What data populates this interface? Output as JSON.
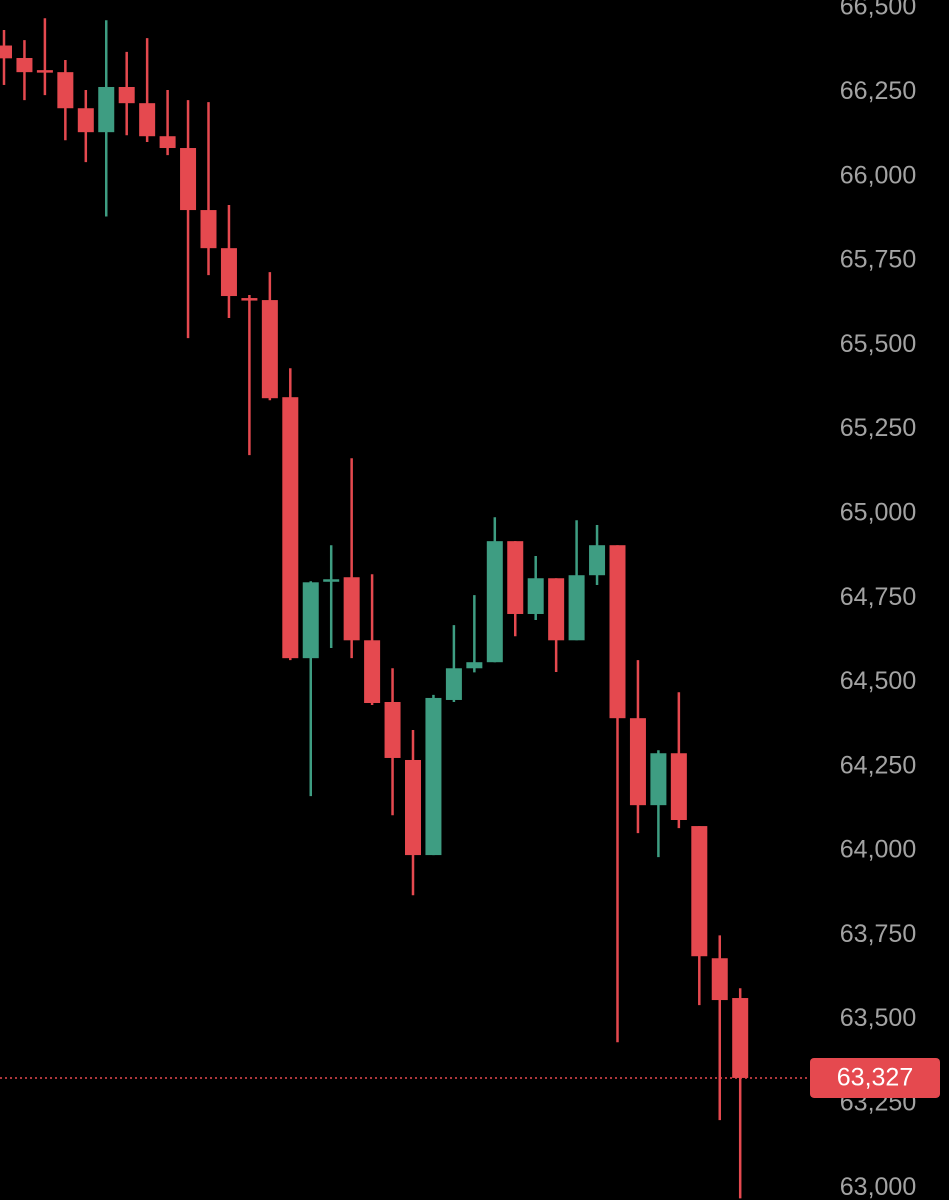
{
  "chart_data": {
    "type": "candlestick",
    "up_color": "#3e9d82",
    "down_color": "#e5494f",
    "ylim": [
      62965,
      66524
    ],
    "yticks": [
      {
        "value": 63000,
        "label": "63,000"
      },
      {
        "value": 63250,
        "label": "63,250"
      },
      {
        "value": 63500,
        "label": "63,500"
      },
      {
        "value": 63750,
        "label": "63,750"
      },
      {
        "value": 64000,
        "label": "64,000"
      },
      {
        "value": 64250,
        "label": "64,250"
      },
      {
        "value": 64500,
        "label": "64,500"
      },
      {
        "value": 64750,
        "label": "64,750"
      },
      {
        "value": 65000,
        "label": "65,000"
      },
      {
        "value": 65250,
        "label": "65,250"
      },
      {
        "value": 65500,
        "label": "65,500"
      },
      {
        "value": 65750,
        "label": "65,750"
      },
      {
        "value": 66000,
        "label": "66,000"
      },
      {
        "value": 66250,
        "label": "66,250"
      },
      {
        "value": 66500,
        "label": "66,500"
      }
    ],
    "last_price": {
      "value": 63327,
      "label": "63,327"
    },
    "candles": [
      {
        "o": 66389,
        "h": 66435,
        "l": 66272,
        "c": 66351
      },
      {
        "o": 66352,
        "h": 66405,
        "l": 66227,
        "c": 66310
      },
      {
        "o": 66316,
        "h": 66470,
        "l": 66242,
        "c": 66310
      },
      {
        "o": 66310,
        "h": 66346,
        "l": 66108,
        "c": 66203
      },
      {
        "o": 66203,
        "h": 66257,
        "l": 66043,
        "c": 66132
      },
      {
        "o": 66132,
        "h": 66464,
        "l": 65882,
        "c": 66266
      },
      {
        "o": 66266,
        "h": 66370,
        "l": 66123,
        "c": 66218
      },
      {
        "o": 66218,
        "h": 66411,
        "l": 66103,
        "c": 66120
      },
      {
        "o": 66120,
        "h": 66257,
        "l": 66064,
        "c": 66085
      },
      {
        "o": 66085,
        "h": 66227,
        "l": 65521,
        "c": 65901
      },
      {
        "o": 65901,
        "h": 66221,
        "l": 65708,
        "c": 65788
      },
      {
        "o": 65788,
        "h": 65916,
        "l": 65581,
        "c": 65646
      },
      {
        "o": 65640,
        "h": 65649,
        "l": 65174,
        "c": 65634
      },
      {
        "o": 65634,
        "h": 65717,
        "l": 65337,
        "c": 65343
      },
      {
        "o": 65346,
        "h": 65432,
        "l": 64566,
        "c": 64572
      },
      {
        "o": 64572,
        "h": 64800,
        "l": 64163,
        "c": 64797
      },
      {
        "o": 64803,
        "h": 64907,
        "l": 64602,
        "c": 64806
      },
      {
        "o": 64812,
        "h": 65165,
        "l": 64572,
        "c": 64625
      },
      {
        "o": 64625,
        "h": 64821,
        "l": 64433,
        "c": 64439
      },
      {
        "o": 64442,
        "h": 64542,
        "l": 64106,
        "c": 64276
      },
      {
        "o": 64270,
        "h": 64359,
        "l": 63869,
        "c": 63988
      },
      {
        "o": 63988,
        "h": 64463,
        "l": 63988,
        "c": 64454
      },
      {
        "o": 64448,
        "h": 64670,
        "l": 64442,
        "c": 64542
      },
      {
        "o": 64542,
        "h": 64759,
        "l": 64530,
        "c": 64560
      },
      {
        "o": 64560,
        "h": 64990,
        "l": 64560,
        "c": 64919
      },
      {
        "o": 64919,
        "h": 64919,
        "l": 64637,
        "c": 64703
      },
      {
        "o": 64703,
        "h": 64875,
        "l": 64685,
        "c": 64809
      },
      {
        "o": 64809,
        "h": 64809,
        "l": 64531,
        "c": 64625
      },
      {
        "o": 64625,
        "h": 64981,
        "l": 64625,
        "c": 64818
      },
      {
        "o": 64818,
        "h": 64967,
        "l": 64789,
        "c": 64907
      },
      {
        "o": 64907,
        "h": 64907,
        "l": 63433,
        "c": 64394
      },
      {
        "o": 64394,
        "h": 64566,
        "l": 64053,
        "c": 64136
      },
      {
        "o": 64136,
        "h": 64299,
        "l": 63982,
        "c": 64290
      },
      {
        "o": 64290,
        "h": 64471,
        "l": 64068,
        "c": 64092
      },
      {
        "o": 64074,
        "h": 64074,
        "l": 63543,
        "c": 63688
      },
      {
        "o": 63682,
        "h": 63750,
        "l": 63202,
        "c": 63558
      },
      {
        "o": 63564,
        "h": 63593,
        "l": 62970,
        "c": 63327
      }
    ]
  }
}
